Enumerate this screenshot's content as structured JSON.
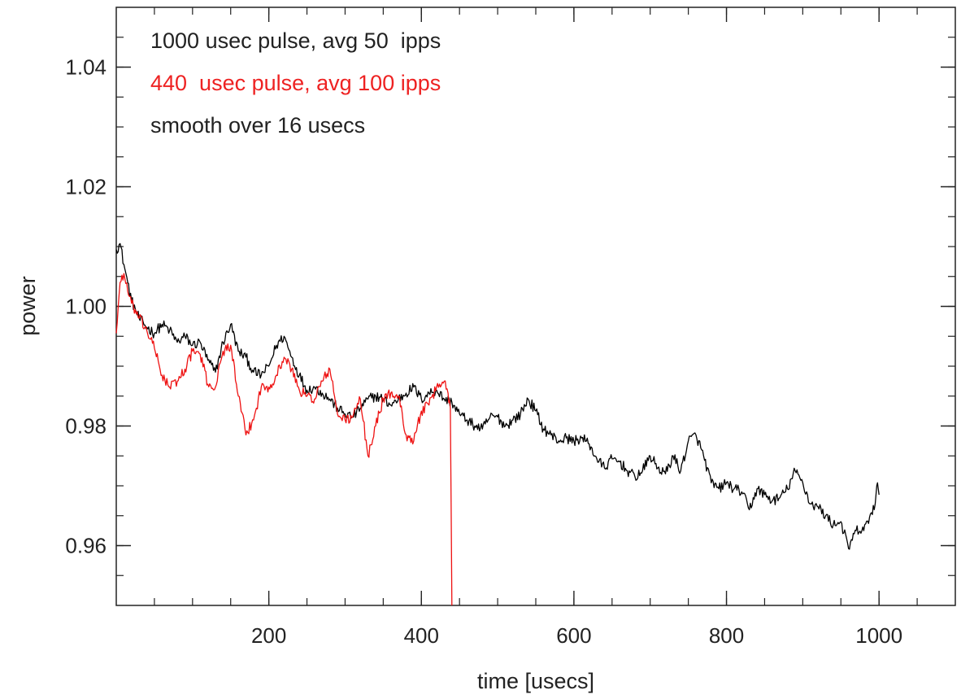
{
  "chart_data": {
    "type": "line",
    "xlabel": "time [usecs]",
    "ylabel": "power",
    "xlim": [
      0,
      1100
    ],
    "ylim": [
      0.95,
      1.05
    ],
    "x_major_ticks": [
      200,
      400,
      600,
      800,
      1000
    ],
    "x_tick_labels": [
      "200",
      "400",
      "600",
      "800",
      "1000"
    ],
    "x_minor_step": 50,
    "y_major_ticks": [
      0.96,
      0.98,
      1.0,
      1.02,
      1.04
    ],
    "y_tick_labels": [
      "0.96",
      "0.98",
      "1.00",
      "1.02",
      "1.04"
    ],
    "y_minor_step": 0.005,
    "grid": false,
    "legend_placement": "top-left",
    "annotations": [
      {
        "text": "1000 usec pulse, avg 50  ipps",
        "color": "#222222"
      },
      {
        "text": "440  usec pulse, avg 100 ipps",
        "color": "#ee2222"
      },
      {
        "text": "smooth over 16 usecs",
        "color": "#222222"
      }
    ],
    "series": [
      {
        "color": "#000000",
        "x": [
          0,
          5,
          10,
          15,
          20,
          25,
          30,
          40,
          50,
          60,
          70,
          80,
          90,
          100,
          110,
          120,
          130,
          140,
          150,
          160,
          170,
          180,
          190,
          200,
          210,
          220,
          230,
          240,
          250,
          260,
          270,
          280,
          290,
          300,
          310,
          320,
          330,
          340,
          350,
          360,
          370,
          380,
          390,
          400,
          410,
          420,
          430,
          440,
          450,
          460,
          470,
          480,
          490,
          500,
          510,
          520,
          530,
          540,
          550,
          560,
          570,
          580,
          590,
          600,
          610,
          620,
          630,
          640,
          650,
          660,
          670,
          680,
          690,
          700,
          710,
          720,
          730,
          740,
          750,
          760,
          770,
          780,
          790,
          800,
          810,
          820,
          830,
          840,
          850,
          860,
          870,
          880,
          890,
          900,
          910,
          920,
          930,
          940,
          950,
          960,
          970,
          980,
          990,
          995,
          998,
          1000
        ],
        "y": [
          1.0095,
          1.0105,
          1.007,
          1.004,
          1.001,
          0.9995,
          0.998,
          0.9965,
          0.9955,
          0.997,
          0.996,
          0.994,
          0.995,
          0.9935,
          0.994,
          0.991,
          0.989,
          0.994,
          0.997,
          0.9925,
          0.9915,
          0.989,
          0.9885,
          0.99,
          0.9935,
          0.995,
          0.9915,
          0.9885,
          0.986,
          0.9865,
          0.9855,
          0.9845,
          0.983,
          0.982,
          0.9815,
          0.983,
          0.9845,
          0.985,
          0.9845,
          0.9835,
          0.9845,
          0.9855,
          0.9865,
          0.9845,
          0.9855,
          0.986,
          0.9845,
          0.984,
          0.982,
          0.981,
          0.98,
          0.9795,
          0.9815,
          0.9815,
          0.98,
          0.981,
          0.982,
          0.9845,
          0.9825,
          0.9795,
          0.9785,
          0.9775,
          0.978,
          0.9775,
          0.978,
          0.977,
          0.9745,
          0.973,
          0.9745,
          0.974,
          0.9725,
          0.9715,
          0.9725,
          0.975,
          0.973,
          0.972,
          0.975,
          0.9725,
          0.9775,
          0.9785,
          0.975,
          0.9705,
          0.9695,
          0.9705,
          0.9695,
          0.969,
          0.966,
          0.9695,
          0.9685,
          0.9675,
          0.968,
          0.9695,
          0.9725,
          0.9705,
          0.967,
          0.9665,
          0.965,
          0.9635,
          0.964,
          0.9595,
          0.9625,
          0.9625,
          0.9655,
          0.967,
          0.9705,
          0.9685
        ]
      },
      {
        "color": "#ee1111",
        "x": [
          0,
          5,
          10,
          15,
          20,
          30,
          40,
          50,
          60,
          70,
          80,
          90,
          100,
          110,
          120,
          130,
          140,
          150,
          160,
          170,
          180,
          190,
          200,
          210,
          220,
          230,
          240,
          250,
          260,
          270,
          280,
          290,
          300,
          310,
          320,
          330,
          340,
          350,
          360,
          370,
          380,
          390,
          400,
          410,
          420,
          430,
          435,
          438,
          440
        ],
        "y": [
          0.9955,
          1.004,
          1.0055,
          1.0025,
          1.0005,
          0.998,
          0.996,
          0.993,
          0.9885,
          0.9865,
          0.9875,
          0.9895,
          0.9925,
          0.992,
          0.987,
          0.9865,
          0.9925,
          0.9935,
          0.985,
          0.9785,
          0.981,
          0.9865,
          0.9865,
          0.9885,
          0.9915,
          0.9895,
          0.986,
          0.985,
          0.9845,
          0.9875,
          0.9895,
          0.982,
          0.981,
          0.9815,
          0.9845,
          0.975,
          0.98,
          0.9845,
          0.9855,
          0.985,
          0.9785,
          0.9775,
          0.9825,
          0.9835,
          0.9865,
          0.9875,
          0.9855,
          0.983,
          0.95
        ]
      }
    ]
  }
}
